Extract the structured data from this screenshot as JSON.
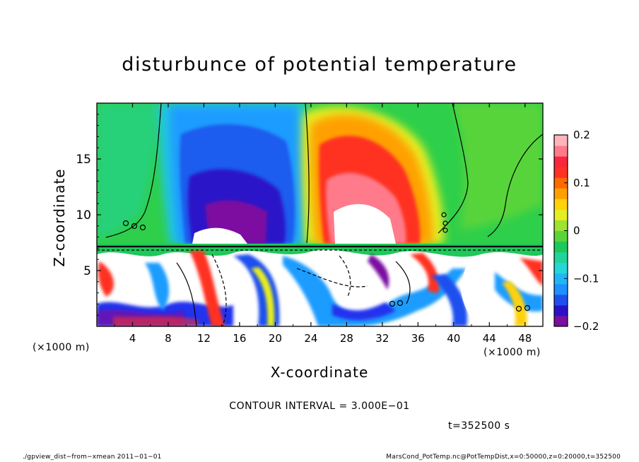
{
  "chart_data": {
    "type": "heatmap",
    "title": "disturbunce of potential temperature",
    "xlabel": "X-coordinate",
    "ylabel": "Z-coordinate",
    "x_unit_note": "(×1000 m)",
    "y_unit_note": "(×1000 m)",
    "xlim": [
      0,
      50
    ],
    "ylim": [
      0,
      20
    ],
    "x_ticks": [
      4,
      8,
      12,
      16,
      20,
      24,
      28,
      32,
      36,
      40,
      44,
      48
    ],
    "y_ticks": [
      5,
      10,
      15
    ],
    "colorbar": {
      "min": -0.2,
      "max": 0.2,
      "tick_values": [
        0.2,
        0.1,
        0,
        -0.1,
        -0.2
      ],
      "tick_labels": [
        "0.2",
        "0.1",
        "0",
        "−0.1",
        "−0.2"
      ],
      "colors": [
        "#7b0fa0",
        "#2c10c8",
        "#1e50ee",
        "#1e90ff",
        "#20b6f6",
        "#24d8d8",
        "#22d39a",
        "#1ec85a",
        "#5ad43a",
        "#9ee232",
        "#e6ee22",
        "#ffd20a",
        "#ffa000",
        "#ff6a00",
        "#ff3024",
        "#f8283c",
        "#ff7a8a",
        "#ffb4bc"
      ]
    },
    "contour_interval": "CONTOUR INTERVAL = 3.000E−01",
    "time_label": "t=352500 s",
    "features": [
      {
        "name": "negative-anomaly",
        "x": 15,
        "z": 12.5,
        "value": -0.2
      },
      {
        "name": "positive-anomaly",
        "x": 29,
        "z": 12.5,
        "value": 0.2
      }
    ]
  },
  "footer": {
    "left": "./gpview_dist−from−xmean   2011−01−01",
    "right": "MarsCond_PotTemp.nc@PotTempDist,x=0:50000,z=0:20000,t=352500"
  },
  "colors": {
    "background": "#ffffff",
    "axis": "#000000"
  }
}
